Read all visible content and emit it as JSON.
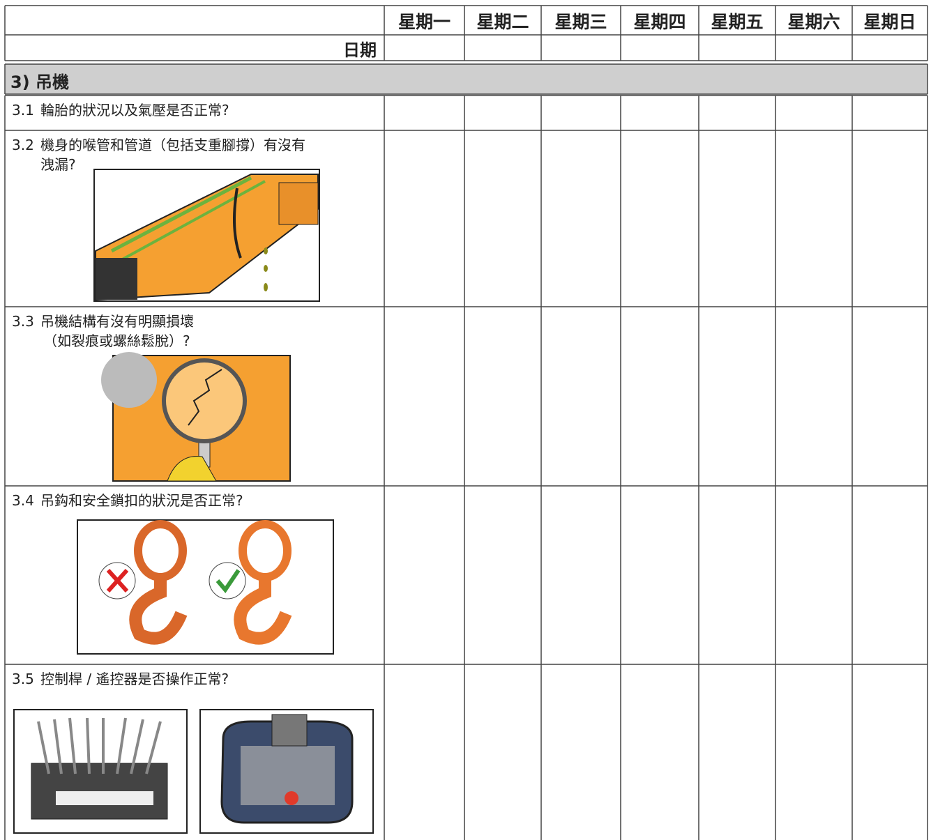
{
  "header": {
    "days": [
      "星期一",
      "星期二",
      "星期三",
      "星期四",
      "星期五",
      "星期六",
      "星期日"
    ],
    "date_label": "日期"
  },
  "section": {
    "title": "3) 吊機"
  },
  "items": [
    {
      "number": "3.1",
      "lines": [
        "輪胎的狀況以及氣壓是否正常?"
      ]
    },
    {
      "number": "3.2",
      "lines": [
        "機身的喉管和管道（包括支重腳撐）有沒有",
        "洩漏?"
      ]
    },
    {
      "number": "3.3",
      "lines": [
        "吊機結構有沒有明顯損壞",
        "（如裂痕或螺絲鬆脫）?"
      ]
    },
    {
      "number": "3.4",
      "lines": [
        "吊鈎和安全鎖扣的狀況是否正常?"
      ]
    },
    {
      "number": "3.5",
      "lines": [
        "控制桿 / 遙控器是否操作正常?"
      ]
    }
  ]
}
